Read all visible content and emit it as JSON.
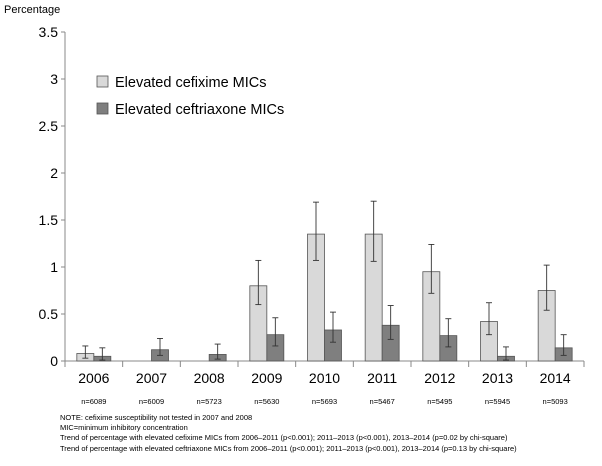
{
  "chart_data": {
    "type": "bar",
    "ylabel": "Percentage",
    "ylim": [
      0,
      3.5
    ],
    "yticks": [
      "0",
      "0.5",
      "1",
      "1.5",
      "2",
      "2.5",
      "3",
      "3.5"
    ],
    "categories": [
      "2006",
      "2007",
      "2008",
      "2009",
      "2010",
      "2011",
      "2012",
      "2013",
      "2014"
    ],
    "sample_sizes": [
      "n=6089",
      "n=6009",
      "n=5723",
      "n=5630",
      "n=5693",
      "n=5467",
      "n=5495",
      "n=5945",
      "n=5093"
    ],
    "legend_position": "upper-left",
    "grid": false,
    "series": [
      {
        "name": "Elevated cefixime MICs",
        "color": "#d9d9d9",
        "values": [
          0.08,
          null,
          null,
          0.8,
          1.35,
          1.35,
          0.95,
          0.42,
          0.75
        ],
        "error_low": [
          0.03,
          null,
          null,
          0.6,
          1.07,
          1.06,
          0.72,
          0.28,
          0.54
        ],
        "error_high": [
          0.16,
          null,
          null,
          1.07,
          1.69,
          1.7,
          1.24,
          0.62,
          1.02
        ]
      },
      {
        "name": "Elevated ceftriaxone MICs",
        "color": "#7f7f7f",
        "values": [
          0.05,
          0.12,
          0.07,
          0.28,
          0.33,
          0.38,
          0.27,
          0.05,
          0.14
        ],
        "error_low": [
          0.01,
          0.06,
          0.02,
          0.16,
          0.2,
          0.23,
          0.15,
          0.01,
          0.06
        ],
        "error_high": [
          0.14,
          0.24,
          0.18,
          0.46,
          0.52,
          0.59,
          0.45,
          0.15,
          0.28
        ]
      }
    ]
  },
  "notes": [
    "NOTE: cefixime susceptibility not tested in 2007 and 2008",
    "MIC=minimum inhibitory concentration",
    "Trend of percentage with elevated cefixime MICs from 2006–2011 (p<0.001); 2011–2013 (p<0.001), 2013–2014 (p=0.02 by chi-square)",
    "Trend of percentage with elevated ceftriaxone MICs from 2006–2011 (p<0.001); 2011–2013 (p<0.001), 2013–2014 (p=0.13 by chi-square)"
  ]
}
